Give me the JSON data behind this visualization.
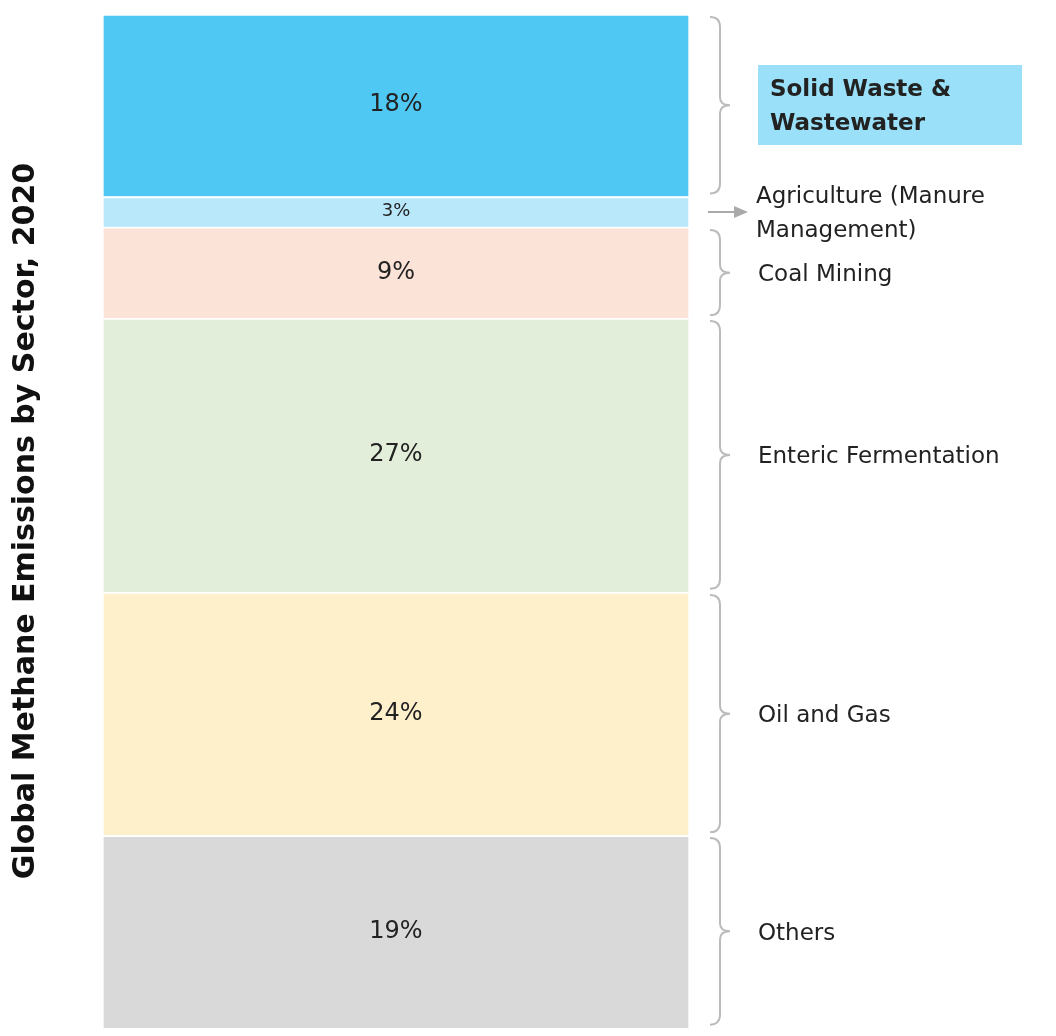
{
  "chart_data": {
    "type": "bar",
    "stacked": true,
    "categories": [
      null
    ],
    "ylabel": "Global Methane Emissions by Sector, 2020",
    "legend": false,
    "series": [
      {
        "name": "Others",
        "color": "#d9d9d9",
        "values": [
          19
        ],
        "value_labels": [
          "19%"
        ]
      },
      {
        "name": "Oil and Gas",
        "color": "#fff0cc",
        "values": [
          24
        ],
        "value_labels": [
          "24%"
        ]
      },
      {
        "name": "Enteric Fermentation",
        "color": "#e2eed9",
        "values": [
          27
        ],
        "value_labels": [
          "27%"
        ]
      },
      {
        "name": "Coal Mining",
        "color": "#fbe3d7",
        "values": [
          9
        ],
        "value_labels": [
          "9%"
        ]
      },
      {
        "name": "Agriculture (Manure Management)",
        "color": "#b9e8fa",
        "values": [
          3
        ],
        "value_labels": [
          "3%"
        ]
      },
      {
        "name": "Solid Waste & Wastewater",
        "color": "#4fc9f4",
        "values": [
          18
        ],
        "value_labels": [
          "18%"
        ]
      }
    ]
  }
}
